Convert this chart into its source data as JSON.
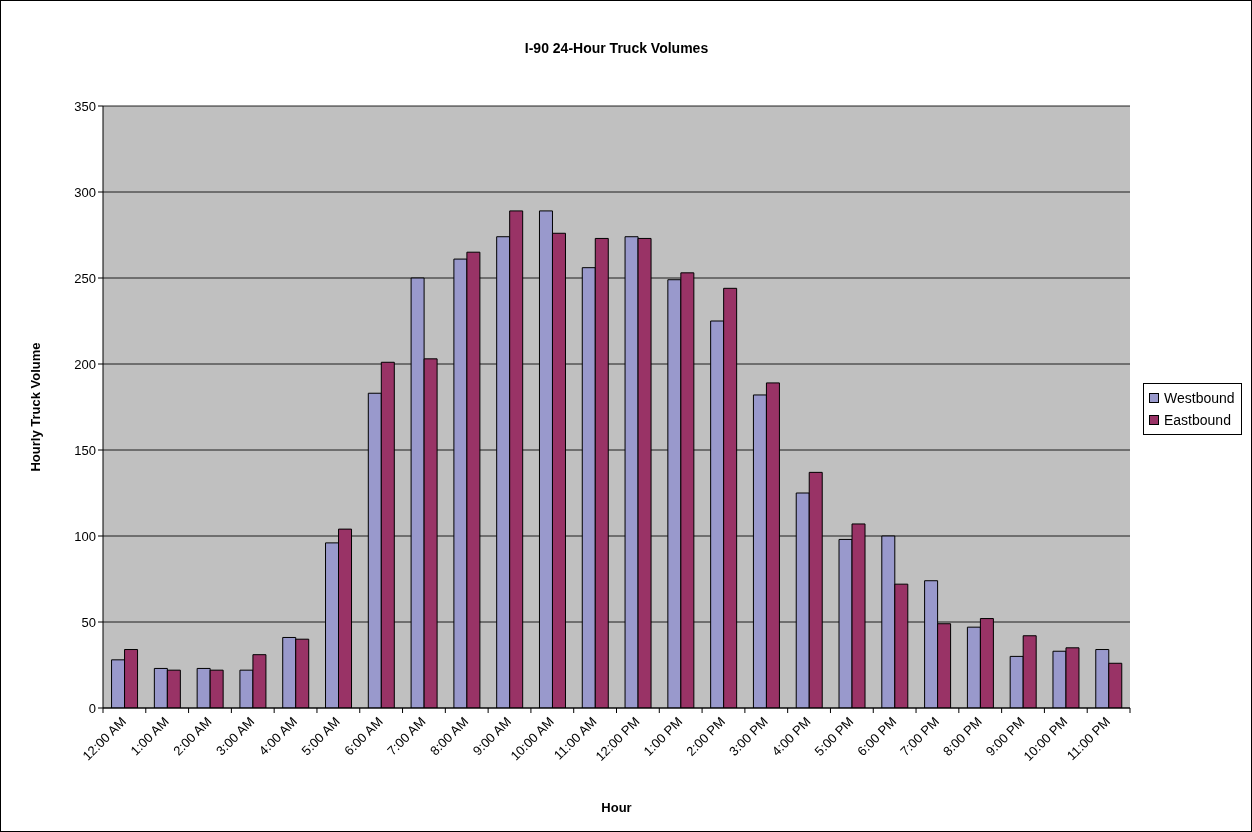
{
  "chart_data": {
    "type": "bar",
    "title": "I-90 24-Hour Truck Volumes",
    "xlabel": "Hour",
    "ylabel": "Hourly Truck Volume",
    "categories": [
      "12:00 AM",
      "1:00 AM",
      "2:00 AM",
      "3:00 AM",
      "4:00 AM",
      "5:00 AM",
      "6:00 AM",
      "7:00 AM",
      "8:00 AM",
      "9:00 AM",
      "10:00 AM",
      "11:00 AM",
      "12:00 PM",
      "1:00 PM",
      "2:00 PM",
      "3:00 PM",
      "4:00 PM",
      "5:00 PM",
      "6:00 PM",
      "7:00 PM",
      "8:00 PM",
      "9:00 PM",
      "10:00 PM",
      "11:00 PM"
    ],
    "series": [
      {
        "name": "Westbound",
        "color": "#9999cc",
        "values": [
          28,
          23,
          23,
          22,
          41,
          96,
          183,
          250,
          261,
          274,
          289,
          256,
          274,
          249,
          225,
          182,
          125,
          98,
          100,
          74,
          47,
          30,
          33,
          34
        ]
      },
      {
        "name": "Eastbound",
        "color": "#993366",
        "values": [
          34,
          22,
          22,
          31,
          40,
          104,
          201,
          203,
          265,
          289,
          276,
          273,
          273,
          253,
          244,
          189,
          137,
          107,
          72,
          49,
          52,
          42,
          35,
          26
        ]
      }
    ],
    "ylim": [
      0,
      350
    ],
    "yticks": [
      0,
      50,
      100,
      150,
      200,
      250,
      300,
      350
    ],
    "grid": "y",
    "legend": "right"
  }
}
